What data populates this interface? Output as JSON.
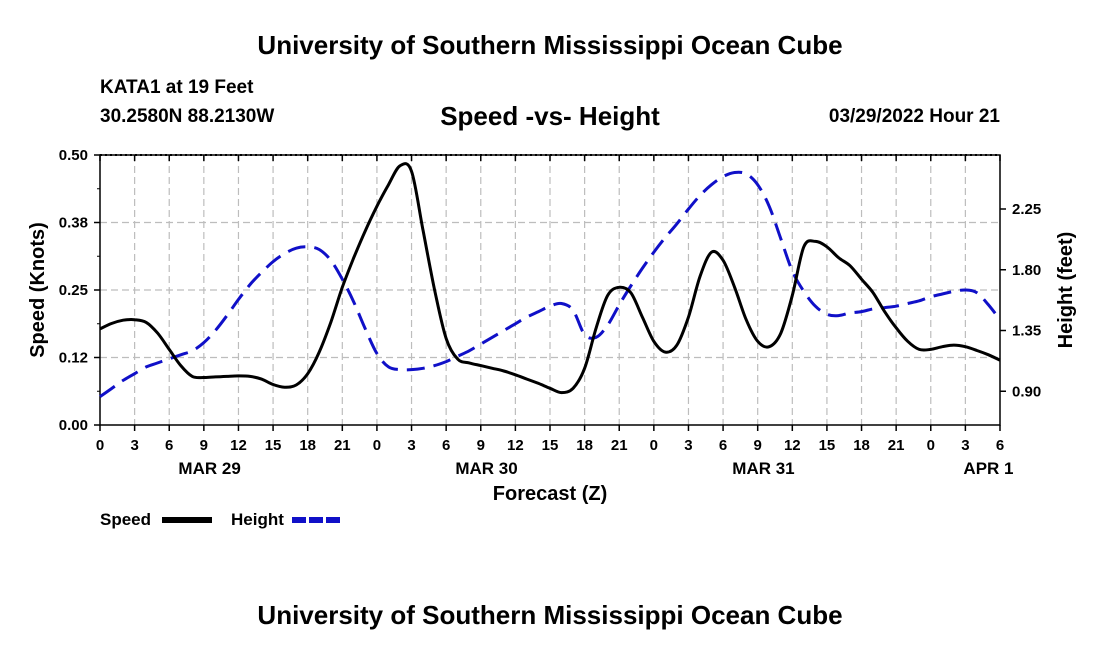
{
  "header": {
    "title": "University of Southern Mississippi Ocean Cube",
    "station": "KATA1 at 19 Feet",
    "coords": "30.2580N  88.2130W",
    "subtitle": "Speed -vs- Height",
    "datetime": "03/29/2022 Hour 21"
  },
  "footer": {
    "title": "University of Southern Mississippi Ocean Cube"
  },
  "colors": {
    "speed": "#000000",
    "height": "#1010c8",
    "grid": "#bdbdbd"
  },
  "chart_data": {
    "type": "line",
    "title": "Speed -vs- Height",
    "xlabel": "Forecast (Z)",
    "ylabel_left": "Speed (Knots)",
    "ylabel_right": "Height (feet)",
    "x_ticks": [
      "0",
      "3",
      "6",
      "9",
      "12",
      "15",
      "18",
      "21",
      "0",
      "3",
      "6",
      "9",
      "12",
      "15",
      "18",
      "21",
      "0",
      "3",
      "6",
      "9",
      "12",
      "15",
      "18",
      "21",
      "0",
      "3",
      "6"
    ],
    "date_labels": [
      {
        "label": "MAR 29",
        "at_hour": 9.5
      },
      {
        "label": "MAR 30",
        "at_hour": 33.5
      },
      {
        "label": "MAR 31",
        "at_hour": 57.5
      },
      {
        "label": "APR 1",
        "at_hour": 77
      }
    ],
    "xlim": [
      0,
      78
    ],
    "ylim_left": [
      0,
      0.5
    ],
    "yticks_left": [
      "0.00",
      "0.12",
      "0.25",
      "0.38",
      "0.50"
    ],
    "ylim_right": [
      0.65,
      2.65
    ],
    "yticks_right": [
      "0.90",
      "1.35",
      "1.80",
      "2.25"
    ],
    "series": [
      {
        "name": "Speed",
        "axis": "left",
        "style": "solid",
        "x": [
          0,
          1,
          2,
          3,
          4,
          5,
          6,
          7,
          8,
          9,
          10,
          11,
          12,
          13,
          14,
          15,
          16,
          17,
          18,
          19,
          20,
          21,
          22,
          23,
          24,
          25,
          26,
          27,
          28,
          29,
          30,
          31,
          32,
          33,
          34,
          35,
          36,
          37,
          38,
          39,
          40,
          41,
          42,
          43,
          44,
          45,
          46,
          47,
          48,
          49,
          50,
          51,
          52,
          53,
          54,
          55,
          56,
          57,
          58,
          59,
          60,
          61,
          62,
          63,
          64,
          65,
          66,
          67,
          68,
          69,
          70,
          71,
          72,
          73,
          74,
          75,
          76,
          77,
          78
        ],
        "values": [
          0.178,
          0.188,
          0.194,
          0.195,
          0.19,
          0.17,
          0.14,
          0.11,
          0.09,
          0.088,
          0.089,
          0.09,
          0.091,
          0.09,
          0.085,
          0.075,
          0.07,
          0.074,
          0.095,
          0.135,
          0.19,
          0.255,
          0.31,
          0.36,
          0.405,
          0.445,
          0.48,
          0.47,
          0.36,
          0.25,
          0.16,
          0.122,
          0.115,
          0.11,
          0.105,
          0.1,
          0.093,
          0.085,
          0.077,
          0.068,
          0.06,
          0.068,
          0.105,
          0.18,
          0.24,
          0.255,
          0.245,
          0.2,
          0.155,
          0.135,
          0.148,
          0.2,
          0.275,
          0.32,
          0.305,
          0.255,
          0.195,
          0.155,
          0.145,
          0.17,
          0.24,
          0.33,
          0.34,
          0.33,
          0.31,
          0.295,
          0.27,
          0.245,
          0.21,
          0.18,
          0.155,
          0.14,
          0.14,
          0.145,
          0.148,
          0.145,
          0.138,
          0.13,
          0.12
        ]
      },
      {
        "name": "Height",
        "axis": "right",
        "style": "dashed",
        "x": [
          0,
          1,
          2,
          3,
          4,
          5,
          6,
          7,
          8,
          9,
          10,
          11,
          12,
          13,
          14,
          15,
          16,
          17,
          18,
          19,
          20,
          21,
          22,
          23,
          24,
          25,
          26,
          27,
          28,
          29,
          30,
          31,
          32,
          33,
          34,
          35,
          36,
          37,
          38,
          39,
          40,
          41,
          42,
          43,
          44,
          45,
          46,
          47,
          48,
          49,
          50,
          51,
          52,
          53,
          54,
          55,
          56,
          57,
          58,
          59,
          60,
          61,
          62,
          63,
          64,
          65,
          66,
          67,
          68,
          69,
          70,
          71,
          72,
          73,
          74,
          75,
          76,
          77,
          78
        ],
        "values": [
          0.86,
          0.92,
          0.98,
          1.03,
          1.08,
          1.11,
          1.14,
          1.17,
          1.2,
          1.26,
          1.35,
          1.46,
          1.58,
          1.69,
          1.78,
          1.86,
          1.92,
          1.96,
          1.97,
          1.95,
          1.87,
          1.73,
          1.56,
          1.36,
          1.18,
          1.08,
          1.06,
          1.06,
          1.07,
          1.09,
          1.12,
          1.16,
          1.2,
          1.25,
          1.3,
          1.35,
          1.4,
          1.45,
          1.49,
          1.53,
          1.55,
          1.5,
          1.32,
          1.3,
          1.39,
          1.54,
          1.68,
          1.81,
          1.93,
          2.04,
          2.14,
          2.25,
          2.35,
          2.43,
          2.49,
          2.52,
          2.51,
          2.43,
          2.27,
          2.03,
          1.79,
          1.64,
          1.53,
          1.47,
          1.46,
          1.48,
          1.49,
          1.51,
          1.52,
          1.53,
          1.55,
          1.57,
          1.6,
          1.62,
          1.64,
          1.65,
          1.63,
          1.54,
          1.43
        ]
      }
    ]
  }
}
